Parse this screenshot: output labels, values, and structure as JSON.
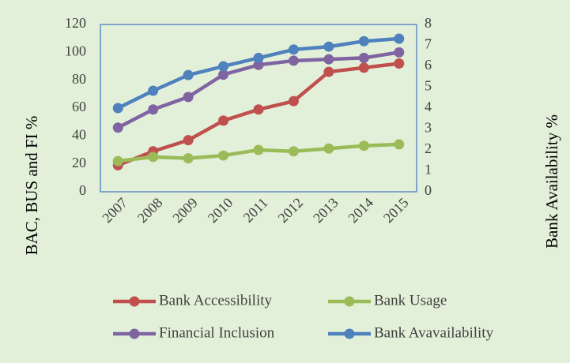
{
  "chart_data": {
    "type": "line",
    "y_label": "BAC, BUS and FI  %",
    "y2_label": "Bank Availability %",
    "categories": [
      "2007",
      "2008",
      "2009",
      "2010",
      "2011",
      "2012",
      "2013",
      "2014",
      "2015"
    ],
    "ylim": [
      0,
      120
    ],
    "yticks": [
      0,
      20,
      40,
      60,
      80,
      100,
      120
    ],
    "y2lim": [
      0,
      8
    ],
    "y2ticks": [
      0,
      1,
      2,
      3,
      4,
      5,
      6,
      7,
      8
    ],
    "legend": "bottom",
    "series": [
      {
        "name": "Bank Accessibility",
        "color": "#c0504d",
        "values": [
          19,
          29,
          37,
          51,
          59,
          65,
          86,
          89,
          92
        ]
      },
      {
        "name": "Bank Usage",
        "color": "#9bbb59",
        "values": [
          22,
          25,
          24,
          26,
          30,
          29,
          31,
          33,
          34
        ]
      },
      {
        "name": "Financial Inclusion",
        "color": "#8064a2",
        "values": [
          46,
          59,
          68,
          84,
          91,
          94,
          95,
          96,
          100
        ]
      },
      {
        "name": "Bank Avavailability",
        "color": "#4f81bd",
        "axis": "y2",
        "values": [
          4.0,
          4.83,
          5.58,
          6.0,
          6.4,
          6.8,
          6.94,
          7.2,
          7.32
        ]
      }
    ]
  }
}
